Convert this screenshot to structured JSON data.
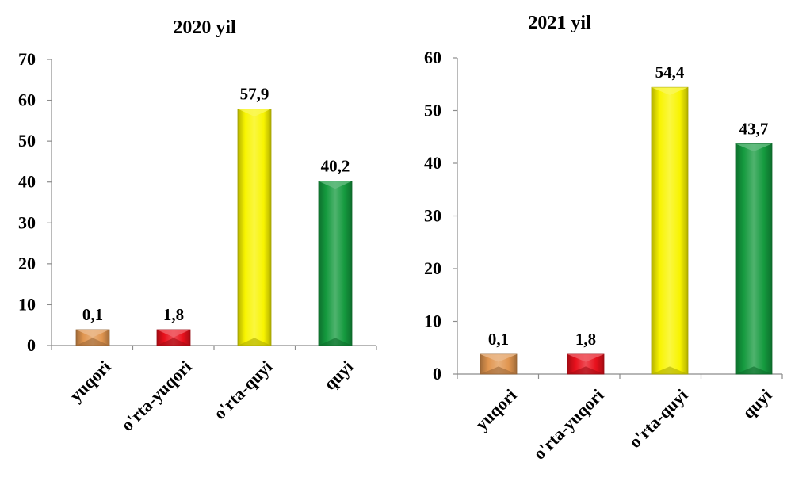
{
  "chart_data": [
    {
      "type": "bar",
      "title": "2020  yil",
      "categories": [
        "yuqori",
        "o'rta-yuqori",
        "o'rta-quyi",
        "quyi"
      ],
      "values": [
        0.1,
        1.8,
        57.9,
        40.2
      ],
      "data_labels": [
        "0,1",
        "1,8",
        "57,9",
        "40,2"
      ],
      "colors": [
        "#e0954f",
        "#e8101c",
        "#f8f400",
        "#149a3e"
      ],
      "ylim": [
        0,
        70
      ],
      "yticks": [
        0,
        10,
        20,
        30,
        40,
        50,
        60,
        70
      ],
      "grid": false,
      "legend": "none"
    },
    {
      "type": "bar",
      "title": "2021 yil",
      "categories": [
        "yuqori",
        "o'rta-yuqori",
        "o'rta-quyi",
        "quyi"
      ],
      "values": [
        0.1,
        1.8,
        54.4,
        43.7
      ],
      "data_labels": [
        "0,1",
        "1,8",
        "54,4",
        "43,7"
      ],
      "colors": [
        "#e0954f",
        "#e8101c",
        "#f8f400",
        "#149a3e"
      ],
      "ylim": [
        0,
        60
      ],
      "yticks": [
        0,
        10,
        20,
        30,
        40,
        50,
        60
      ],
      "grid": false,
      "legend": "none"
    }
  ]
}
